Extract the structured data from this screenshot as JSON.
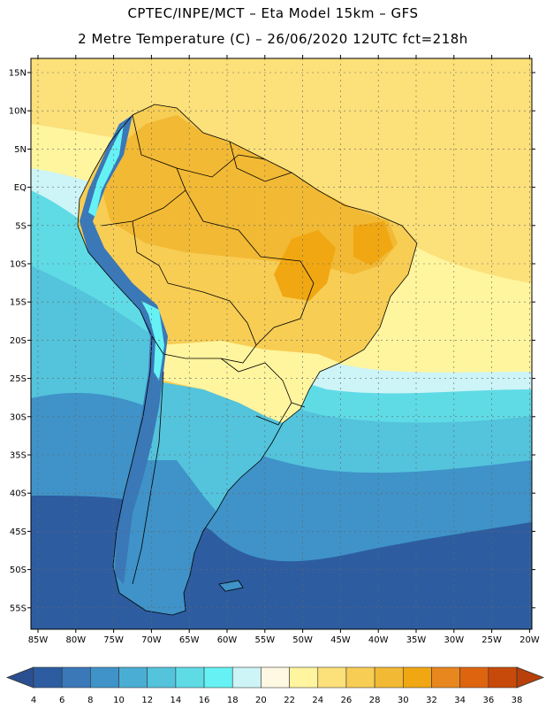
{
  "header": {
    "line1": "CPTEC/INPE/MCT –   Eta Model 15km – GFS",
    "line2": "2 Metre Temperature (C) – 26/06/2020 12UTC fct=218h"
  },
  "axes": {
    "lat_labels": [
      "15N",
      "10N",
      "5N",
      "EQ",
      "5S",
      "10S",
      "15S",
      "20S",
      "25S",
      "30S",
      "35S",
      "40S",
      "45S",
      "50S",
      "55S"
    ],
    "lon_labels": [
      "85W",
      "80W",
      "75W",
      "70W",
      "65W",
      "60W",
      "55W",
      "50W",
      "45W",
      "40W",
      "35W",
      "30W",
      "25W",
      "20W"
    ]
  },
  "colorbar": {
    "labels": [
      "4",
      "6",
      "8",
      "10",
      "12",
      "14",
      "16",
      "18",
      "20",
      "22",
      "24",
      "26",
      "28",
      "30",
      "32",
      "34",
      "36",
      "38"
    ],
    "colors": [
      "#2d5da0",
      "#3a78b8",
      "#3f93c8",
      "#4aaed4",
      "#54c3dc",
      "#5fdbe6",
      "#66f2f4",
      "#cdf4f6",
      "#fff8e3",
      "#fff59e",
      "#fce07a",
      "#f7cd54",
      "#f2b934",
      "#f0a712",
      "#e8871e",
      "#de6410",
      "#c84a0a"
    ],
    "end_low": "#2a4f90",
    "end_high": "#b8400a"
  },
  "map": {
    "ocean_colors": {
      "north_atlantic": "#fce07a",
      "equatorial": "#fff59e",
      "subtropical_pacific": "#5fdbe6",
      "mid": "#54c3dc",
      "south": "#3f93c8",
      "deep_south": "#2d5da0"
    },
    "land_colors": {
      "amazon": "#f2b934",
      "hot_core": "#f0a712",
      "center": "#f7cd54",
      "south_brazil": "#fff59e",
      "pampas": "#54c3dc",
      "patagonia": "#3f93c8",
      "andes_high": "#3a78b8",
      "andes_peaks": "#66f2f4"
    }
  }
}
